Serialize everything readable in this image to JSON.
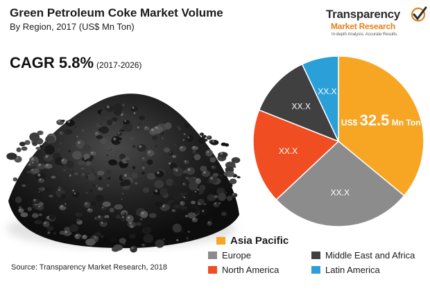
{
  "header": {
    "title": "Green Petroleum Coke Market Volume",
    "subtitle": "By Region, 2017 (US$ Mn Ton)"
  },
  "cagr": {
    "label": "CAGR 5.8%",
    "period": "(2017-2026)"
  },
  "logo": {
    "line1": "Transparency",
    "line2": "Market Research",
    "tagline": "In-depth Analysis. Accurate Results."
  },
  "source": "Source: Transparency Market Research, 2018",
  "colors": {
    "asia_pacific": "#f6a623",
    "europe": "#8c8c8c",
    "north_america": "#f04e22",
    "mea": "#404040",
    "latin_america": "#2a9fd8",
    "logo_check": "#e2801a"
  },
  "chart_data": {
    "type": "pie",
    "title": "Green Petroleum Coke Market Volume",
    "subtitle": "By Region, 2017 (US$ Mn Ton)",
    "slices": [
      {
        "name": "Asia Pacific",
        "share": 0.36,
        "label_prefix": "US$ ",
        "label_value": "32.5",
        "label_suffix": " Mn Ton",
        "color": "#f6a623"
      },
      {
        "name": "Europe",
        "share": 0.27,
        "label": "XX.X",
        "color": "#8c8c8c"
      },
      {
        "name": "North America",
        "share": 0.18,
        "label": "XX.X",
        "color": "#f04e22"
      },
      {
        "name": "Middle East and Africa",
        "share": 0.12,
        "label": "XX.X",
        "color": "#404040"
      },
      {
        "name": "Latin America",
        "share": 0.07,
        "label": "XX.X",
        "color": "#2a9fd8"
      }
    ],
    "legend": [
      "Asia Pacific",
      "Europe",
      "North America",
      "Middle East and Africa",
      "Latin America"
    ],
    "legend_position": "bottom"
  }
}
